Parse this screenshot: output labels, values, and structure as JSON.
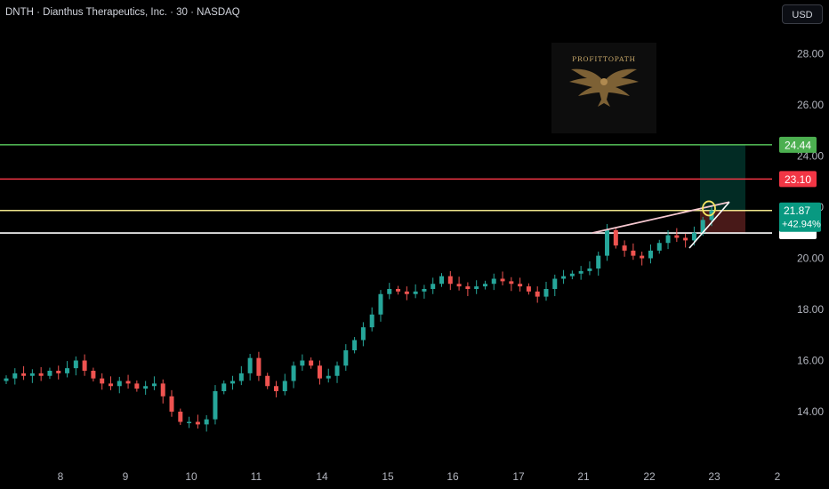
{
  "header": {
    "title": "DNTH · Dianthus Therapeutics, Inc. · 30 · NASDAQ",
    "currency_button": "USD"
  },
  "logo": {
    "text": "PROFITTOPATH"
  },
  "colors": {
    "background": "#000000",
    "up_candle": "#26a69a",
    "down_candle": "#ef5350",
    "target_line": "#4caf50",
    "stop_line": "#f23645",
    "yellow_line": "#f0e68c",
    "white_line": "#ffffff",
    "price_tag": "#089981"
  },
  "chart_data": {
    "type": "candlestick",
    "title": "DNTH · Dianthus Therapeutics, Inc. · 30 · NASDAQ",
    "xlabel": "",
    "ylabel": "",
    "ylim": [
      12.9,
      30.1
    ],
    "y_ticks": [
      "28.00",
      "26.00",
      "24.00",
      "22.00",
      "20.00",
      "18.00",
      "16.00",
      "14.00"
    ],
    "x_ticks": [
      "8",
      "9",
      "10",
      "11",
      "14",
      "15",
      "16",
      "17",
      "21",
      "22",
      "23",
      "2"
    ],
    "series_close": [
      15.3,
      15.5,
      15.4,
      15.5,
      15.4,
      15.6,
      15.5,
      15.7,
      16.0,
      15.6,
      15.3,
      15.1,
      15.0,
      15.2,
      15.1,
      14.9,
      15.0,
      15.1,
      14.6,
      14.0,
      13.6,
      13.6,
      13.5,
      13.7,
      14.8,
      15.1,
      15.2,
      15.5,
      16.1,
      15.4,
      15.0,
      14.8,
      15.2,
      15.8,
      16.0,
      15.8,
      15.3,
      15.4,
      15.8,
      16.4,
      16.8,
      17.3,
      17.8,
      18.6,
      18.8,
      18.7,
      18.6,
      18.7,
      18.8,
      19.0,
      19.3,
      19.0,
      18.9,
      18.8,
      18.9,
      19.0,
      19.2,
      19.1,
      19.0,
      18.9,
      18.7,
      18.5,
      18.8,
      19.2,
      19.3,
      19.4,
      19.5,
      19.6,
      20.1,
      21.1,
      20.5,
      20.3,
      20.1,
      20.0,
      20.3,
      20.6,
      20.9,
      20.8,
      20.7,
      21.0,
      21.5,
      21.87
    ],
    "levels": [
      {
        "label": "24.44",
        "value": 24.44,
        "color": "#4caf50"
      },
      {
        "label": "23.10",
        "value": 23.1,
        "color": "#f23645"
      },
      {
        "value": 21.87,
        "color": "#f0e68c"
      },
      {
        "value": 20.99,
        "color": "#ffffff"
      }
    ],
    "last_price": {
      "value": "21.87",
      "change": "+42.94%"
    },
    "position": {
      "entry": 21.87,
      "target": 24.44,
      "stop": 20.99
    },
    "grid": false,
    "legend": "none"
  }
}
